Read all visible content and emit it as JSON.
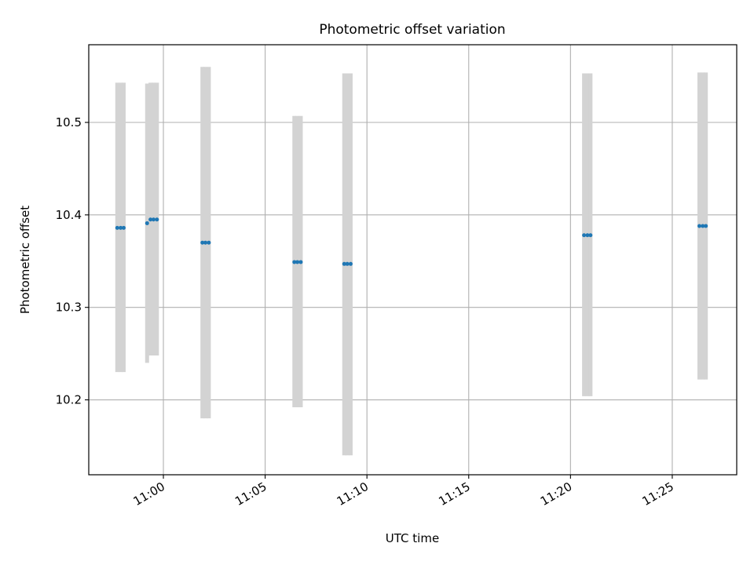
{
  "chart_data": {
    "type": "scatter",
    "title": "Photometric offset variation",
    "xlabel": "UTC time",
    "ylabel": "Photometric offset",
    "x_ticks": [
      "11:00",
      "11:05",
      "11:10",
      "11:15",
      "11:20",
      "11:25"
    ],
    "y_ticks": [
      "10.2",
      "10.3",
      "10.4",
      "10.5"
    ],
    "xlim": [
      "10:56:20",
      "11:28:10"
    ],
    "ylim": [
      10.119,
      10.584
    ],
    "grid": true,
    "colors": {
      "points": "#1f77b4",
      "error_bars": "#d3d3d3",
      "grid": "#b0b0b0"
    },
    "series": [
      {
        "points": [
          {
            "x": "10:57:44",
            "y": 10.386,
            "y_low": 10.23,
            "y_high": 10.543
          },
          {
            "x": "10:57:54",
            "y": 10.386,
            "y_low": 10.23,
            "y_high": 10.543
          },
          {
            "x": "10:58:03",
            "y": 10.386,
            "y_low": 10.23,
            "y_high": 10.543
          },
          {
            "x": "10:59:12",
            "y": 10.391,
            "y_low": 10.24,
            "y_high": 10.542
          },
          {
            "x": "10:59:22",
            "y": 10.395,
            "y_low": 10.248,
            "y_high": 10.543
          },
          {
            "x": "10:59:31",
            "y": 10.395,
            "y_low": 10.248,
            "y_high": 10.543
          },
          {
            "x": "10:59:41",
            "y": 10.395,
            "y_low": 10.248,
            "y_high": 10.543
          },
          {
            "x": "11:01:55",
            "y": 10.37,
            "y_low": 10.18,
            "y_high": 10.56
          },
          {
            "x": "11:02:04",
            "y": 10.37,
            "y_low": 10.18,
            "y_high": 10.56
          },
          {
            "x": "11:02:14",
            "y": 10.37,
            "y_low": 10.18,
            "y_high": 10.56
          },
          {
            "x": "11:06:26",
            "y": 10.349,
            "y_low": 10.192,
            "y_high": 10.507
          },
          {
            "x": "11:06:35",
            "y": 10.349,
            "y_low": 10.192,
            "y_high": 10.507
          },
          {
            "x": "11:06:45",
            "y": 10.349,
            "y_low": 10.192,
            "y_high": 10.507
          },
          {
            "x": "11:08:53",
            "y": 10.347,
            "y_low": 10.14,
            "y_high": 10.553
          },
          {
            "x": "11:09:02",
            "y": 10.347,
            "y_low": 10.14,
            "y_high": 10.553
          },
          {
            "x": "11:09:12",
            "y": 10.347,
            "y_low": 10.14,
            "y_high": 10.553
          },
          {
            "x": "11:20:40",
            "y": 10.378,
            "y_low": 10.204,
            "y_high": 10.553
          },
          {
            "x": "11:20:50",
            "y": 10.378,
            "y_low": 10.204,
            "y_high": 10.553
          },
          {
            "x": "11:20:59",
            "y": 10.378,
            "y_low": 10.204,
            "y_high": 10.553
          },
          {
            "x": "11:26:20",
            "y": 10.388,
            "y_low": 10.222,
            "y_high": 10.554
          },
          {
            "x": "11:26:30",
            "y": 10.388,
            "y_low": 10.222,
            "y_high": 10.554
          },
          {
            "x": "11:26:39",
            "y": 10.388,
            "y_low": 10.222,
            "y_high": 10.554
          }
        ]
      }
    ]
  }
}
